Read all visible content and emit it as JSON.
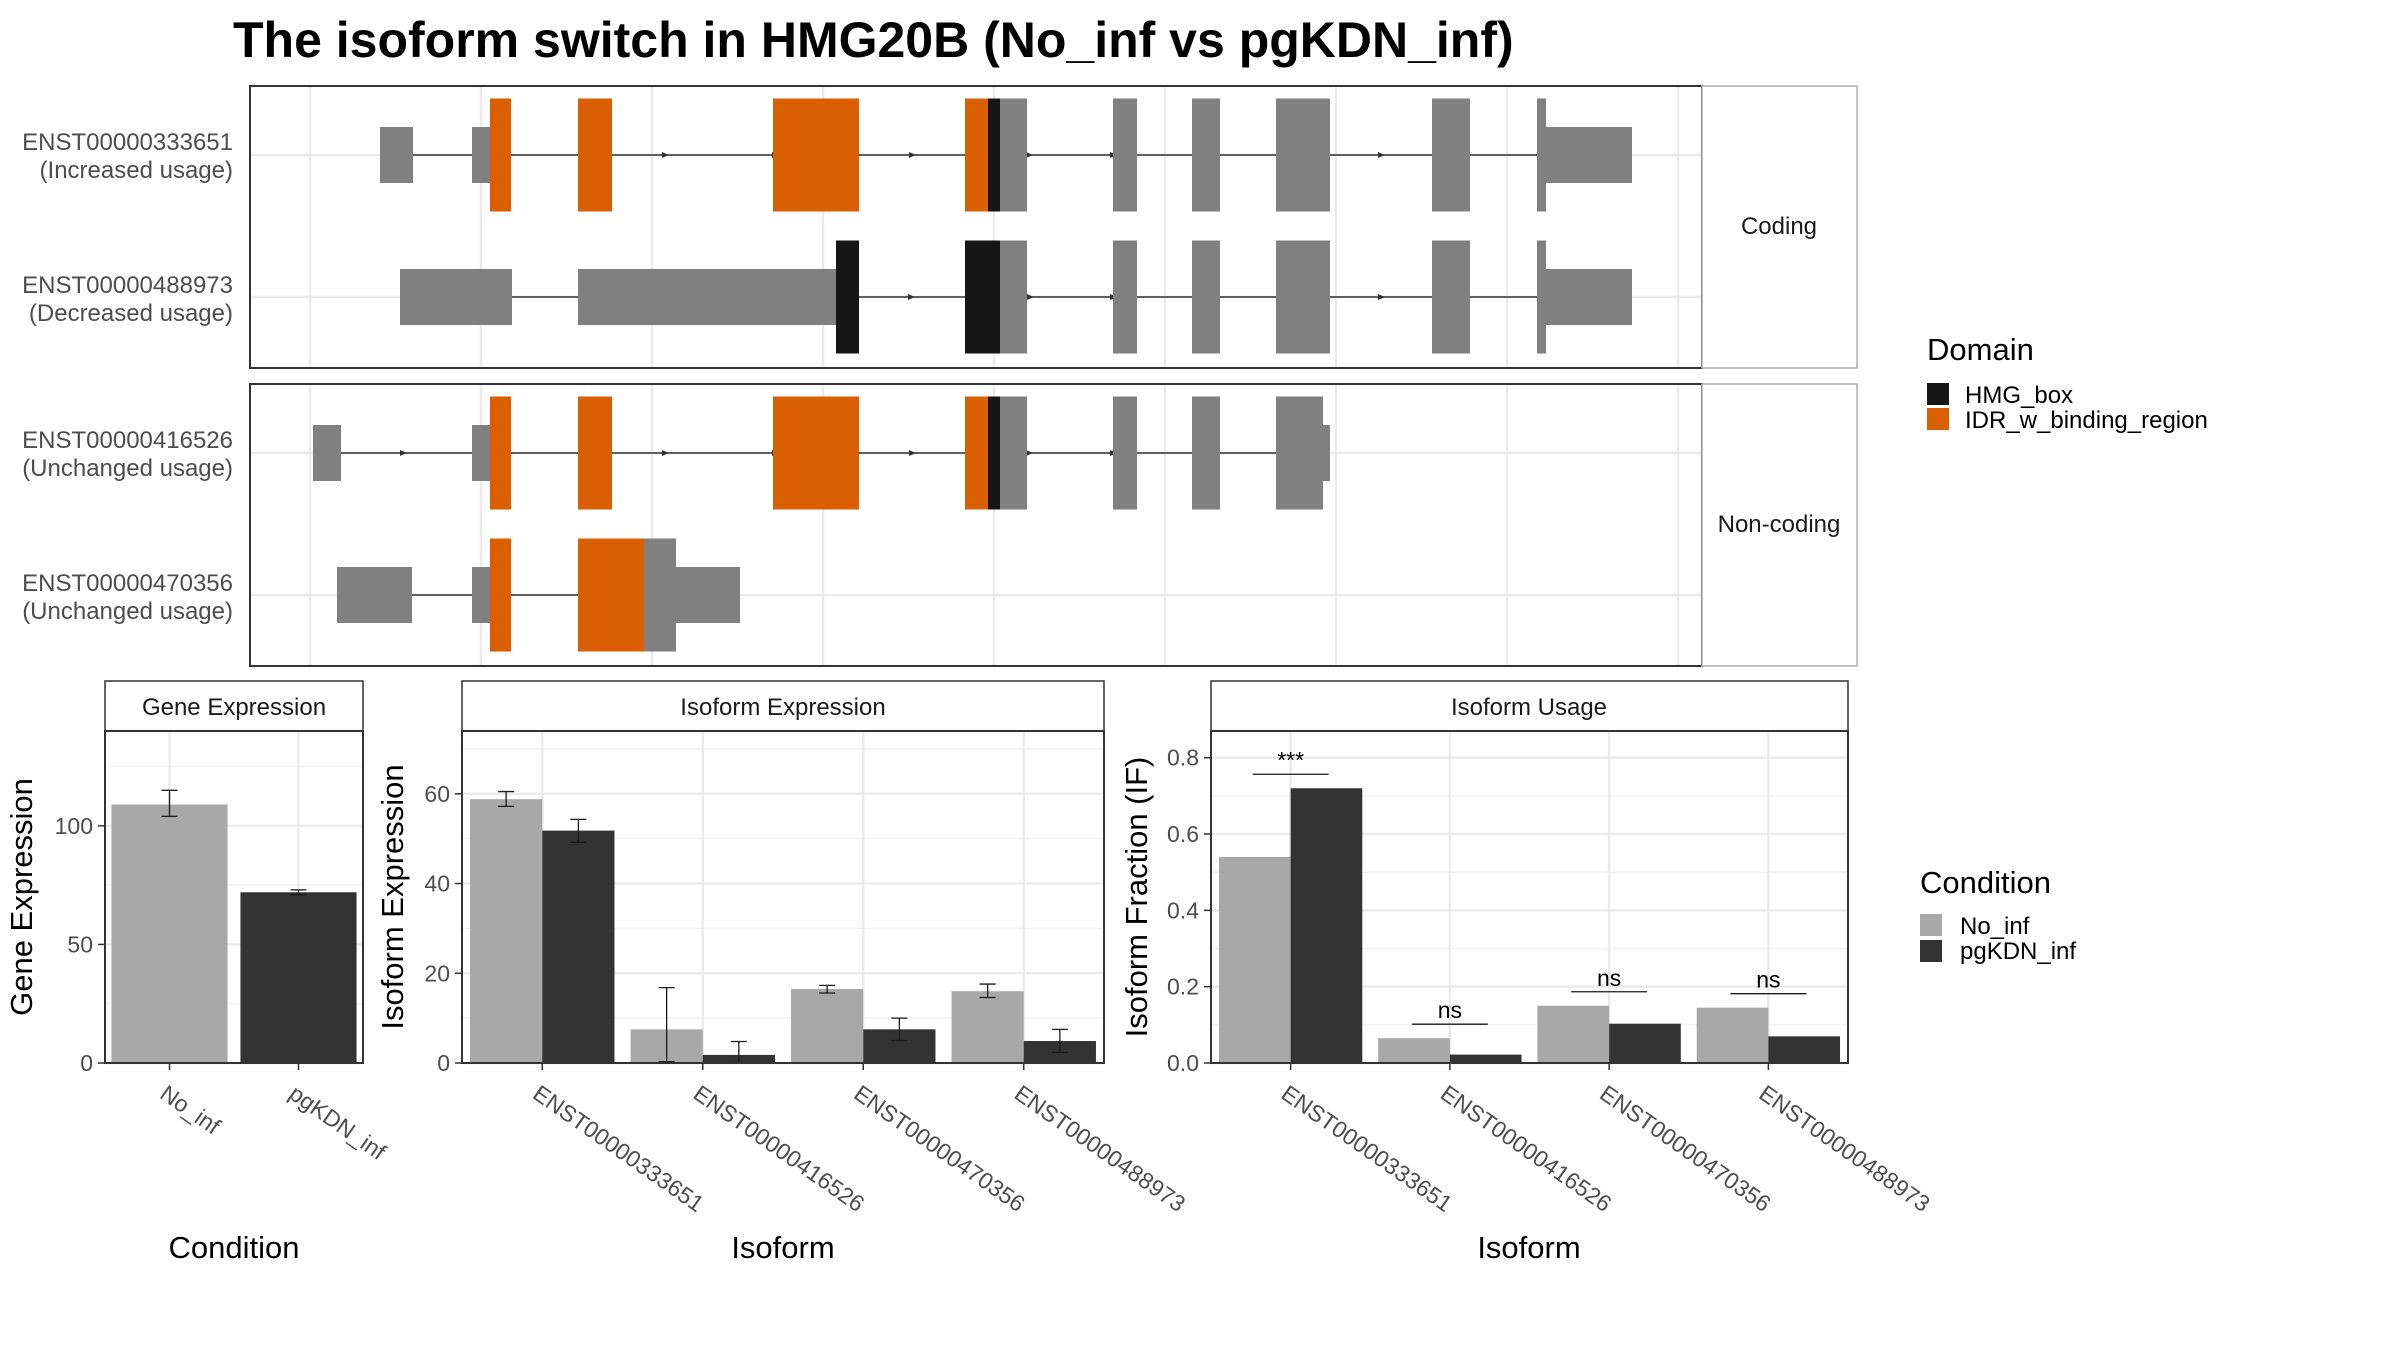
{
  "title": "The isoform switch in HMG20B (No_inf vs pgKDN_inf)",
  "colors": {
    "no_inf": "#a8a8a8",
    "pgkdn_inf": "#333333",
    "exon": "#808080",
    "hmg_box": "#161616",
    "idr": "#d95f02",
    "grid": "#ebebeb",
    "panel_border": "#333333",
    "strip_bg": "#ffffff"
  },
  "structure": {
    "facets": [
      "Coding",
      "Non-coding"
    ],
    "transcripts": [
      {
        "id": "ENST00000333651",
        "label": "(Increased usage)",
        "facet": "Coding"
      },
      {
        "id": "ENST00000488973",
        "label": "(Decreased usage)",
        "facet": "Coding"
      },
      {
        "id": "ENST00000416526",
        "label": "(Unchanged usage)",
        "facet": "Non-coding"
      },
      {
        "id": "ENST00000470356",
        "label": "(Unchanged usage)",
        "facet": "Non-coding"
      }
    ]
  },
  "legend_domain": {
    "title": "Domain",
    "items": [
      {
        "label": "HMG_box",
        "color": "#161616"
      },
      {
        "label": "IDR_w_binding_region",
        "color": "#d95f02"
      }
    ]
  },
  "legend_condition": {
    "title": "Condition",
    "items": [
      {
        "label": "No_inf",
        "color": "#a8a8a8"
      },
      {
        "label": "pgKDN_inf",
        "color": "#333333"
      }
    ]
  },
  "chart_data": [
    {
      "type": "bar",
      "title": "Gene Expression",
      "xlabel": "Condition",
      "ylabel": "Gene Expression",
      "categories": [
        "No_inf",
        "pgKDN_inf"
      ],
      "values": [
        109,
        72
      ],
      "errors": [
        [
          104,
          115
        ],
        [
          71,
          73
        ]
      ],
      "ylim": [
        0,
        140
      ],
      "yticks": [
        0,
        50,
        100
      ]
    },
    {
      "type": "bar",
      "title": "Isoform Expression",
      "xlabel": "Isoform",
      "ylabel": "Isoform Expression",
      "categories": [
        "ENST00000333651",
        "ENST00000416526",
        "ENST00000470356",
        "ENST00000488973"
      ],
      "series": [
        {
          "name": "No_inf",
          "values": [
            58.8,
            7.5,
            16.5,
            16.0
          ],
          "errors": [
            [
              57.2,
              60.5
            ],
            [
              0.3,
              16.8
            ],
            [
              15.6,
              17.3
            ],
            [
              14.6,
              17.6
            ]
          ]
        },
        {
          "name": "pgKDN_inf",
          "values": [
            51.8,
            1.8,
            7.5,
            4.9
          ],
          "errors": [
            [
              49.2,
              54.3
            ],
            [
              0.1,
              4.8
            ],
            [
              5.0,
              10.0
            ],
            [
              2.4,
              7.5
            ]
          ]
        }
      ],
      "ylim": [
        0,
        74
      ],
      "yticks": [
        0,
        20,
        40,
        60
      ]
    },
    {
      "type": "bar",
      "title": "Isoform Usage",
      "xlabel": "Isoform",
      "ylabel": "Isoform Fraction (IF)",
      "categories": [
        "ENST00000333651",
        "ENST00000416526",
        "ENST00000470356",
        "ENST00000488973"
      ],
      "series": [
        {
          "name": "No_inf",
          "values": [
            0.54,
            0.065,
            0.15,
            0.145
          ]
        },
        {
          "name": "pgKDN_inf",
          "values": [
            0.72,
            0.022,
            0.103,
            0.07
          ]
        }
      ],
      "significance": [
        "***",
        "ns",
        "ns",
        "ns"
      ],
      "ylim": [
        0,
        0.87
      ],
      "yticks": [
        0.0,
        0.2,
        0.4,
        0.6,
        0.8
      ],
      "ytick_labels": [
        "0.0",
        "0.2",
        "0.4",
        "0.6",
        "0.8"
      ]
    }
  ]
}
